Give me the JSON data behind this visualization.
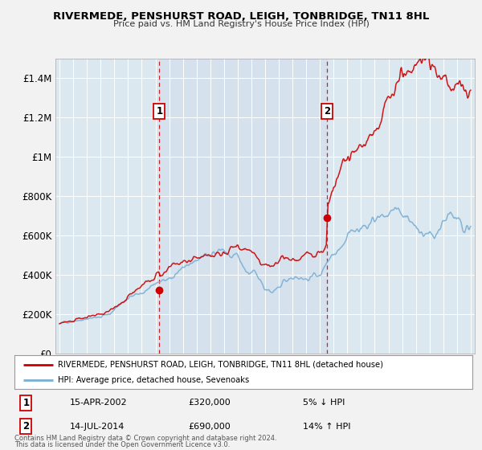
{
  "title": "RIVERMEDE, PENSHURST ROAD, LEIGH, TONBRIDGE, TN11 8HL",
  "subtitle": "Price paid vs. HM Land Registry's House Price Index (HPI)",
  "legend_line1": "RIVERMEDE, PENSHURST ROAD, LEIGH, TONBRIDGE, TN11 8HL (detached house)",
  "legend_line2": "HPI: Average price, detached house, Sevenoaks",
  "annotation1": {
    "label": "1",
    "date": "15-APR-2002",
    "price": "£320,000",
    "pct": "5% ↓ HPI"
  },
  "annotation2": {
    "label": "2",
    "date": "14-JUL-2014",
    "price": "£690,000",
    "pct": "14% ↑ HPI"
  },
  "footer1": "Contains HM Land Registry data © Crown copyright and database right 2024.",
  "footer2": "This data is licensed under the Open Government Licence v3.0.",
  "sold_color": "#cc0000",
  "hpi_color": "#7aafd4",
  "vline_color": "#cc0000",
  "background_color": "#f2f2f2",
  "plot_bg_color": "#dce8f0",
  "ylim": [
    0,
    1500000
  ],
  "yticks": [
    0,
    200000,
    400000,
    600000,
    800000,
    1000000,
    1200000,
    1400000
  ],
  "ytick_labels": [
    "£0",
    "£200K",
    "£400K",
    "£600K",
    "£800K",
    "£1M",
    "£1.2M",
    "£1.4M"
  ],
  "sale1_year": 2002.29,
  "sale2_year": 2014.54,
  "sale1_price": 320000,
  "sale2_price": 690000
}
